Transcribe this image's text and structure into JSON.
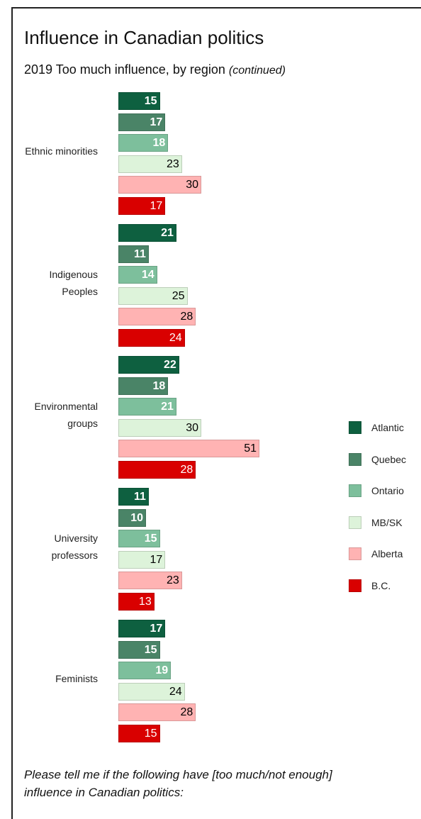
{
  "chart_data": {
    "type": "bar",
    "orientation": "horizontal",
    "title": "Influence in Canadian politics",
    "subtitle": "2019 Too much influence, by region",
    "subtitle_note": "(continued)",
    "categories": [
      "Ethnic minorities",
      "Indigenous\nPeoples",
      "Environmental\ngroups",
      "University\nprofessors",
      "Feminists"
    ],
    "series": [
      {
        "name": "Atlantic",
        "color": "#0e6040",
        "label_color": "#ffffff",
        "values": [
          15,
          21,
          22,
          11,
          17
        ]
      },
      {
        "name": "Quebec",
        "color": "#4a8467",
        "label_color": "#ffffff",
        "values": [
          17,
          11,
          18,
          10,
          15
        ]
      },
      {
        "name": "Ontario",
        "color": "#7dbf9c",
        "label_color": "#ffffff",
        "values": [
          18,
          14,
          21,
          15,
          19
        ]
      },
      {
        "name": "MB/SK",
        "color": "#ddf3da",
        "label_color": "#000000",
        "values": [
          23,
          25,
          30,
          17,
          24
        ]
      },
      {
        "name": "Alberta",
        "color": "#ffb3b3",
        "label_color": "#000000",
        "values": [
          30,
          28,
          51,
          23,
          28
        ]
      },
      {
        "name": "B.C.",
        "color": "#d90000",
        "label_color": "#ffffff",
        "values": [
          17,
          24,
          28,
          13,
          15
        ]
      }
    ],
    "legend": "right",
    "footnote": "Please tell me if the following have [too much/not enough]\ninfluence in Canadian politics:"
  }
}
